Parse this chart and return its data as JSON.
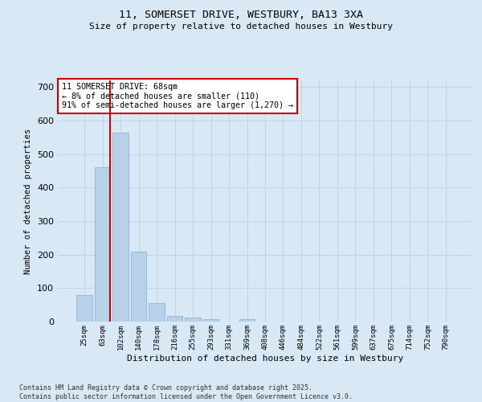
{
  "title_line1": "11, SOMERSET DRIVE, WESTBURY, BA13 3XA",
  "title_line2": "Size of property relative to detached houses in Westbury",
  "xlabel": "Distribution of detached houses by size in Westbury",
  "ylabel": "Number of detached properties",
  "categories": [
    "25sqm",
    "63sqm",
    "102sqm",
    "140sqm",
    "178sqm",
    "216sqm",
    "255sqm",
    "293sqm",
    "331sqm",
    "369sqm",
    "408sqm",
    "446sqm",
    "484sqm",
    "522sqm",
    "561sqm",
    "599sqm",
    "637sqm",
    "675sqm",
    "714sqm",
    "752sqm",
    "790sqm"
  ],
  "values": [
    80,
    460,
    565,
    210,
    55,
    18,
    12,
    8,
    0,
    8,
    0,
    0,
    0,
    0,
    0,
    0,
    0,
    0,
    0,
    0,
    0
  ],
  "bar_color": "#b8d0e8",
  "bar_edge_color": "#7aafd4",
  "vline_color": "#cc0000",
  "annotation_text": "11 SOMERSET DRIVE: 68sqm\n← 8% of detached houses are smaller (110)\n91% of semi-detached houses are larger (1,270) →",
  "annotation_box_color": "#ffffff",
  "annotation_box_edge": "#cc0000",
  "grid_color": "#c0d4e4",
  "background_color": "#d8e8f4",
  "ylim": [
    0,
    720
  ],
  "yticks": [
    0,
    100,
    200,
    300,
    400,
    500,
    600,
    700
  ],
  "footer_line1": "Contains HM Land Registry data © Crown copyright and database right 2025.",
  "footer_line2": "Contains public sector information licensed under the Open Government Licence v3.0."
}
